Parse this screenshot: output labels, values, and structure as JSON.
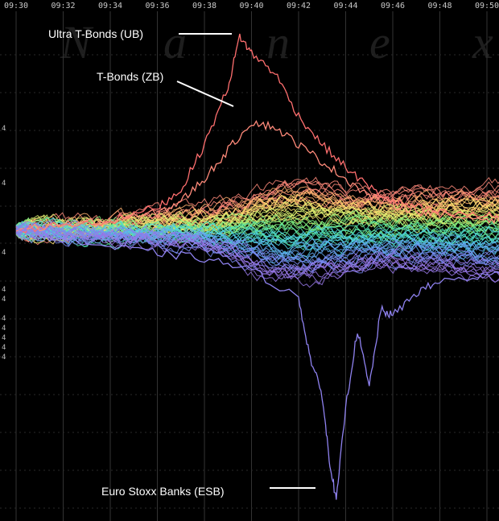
{
  "watermark": [
    "N",
    "a",
    "n",
    "e",
    "x"
  ],
  "colors": {
    "background": "#000000",
    "grid": "#333333",
    "tick_text": "#c8c8c8",
    "annotation": "#ffffff",
    "ub": "#ff6f6f",
    "zb": "#ff8a7a",
    "esb": "#8f82f0",
    "bundle": [
      "#ff8a7a",
      "#ffb070",
      "#ffe070",
      "#d8f070",
      "#80f080",
      "#50e0b0",
      "#50d0e8",
      "#60a8f0",
      "#7888f0",
      "#9878e8"
    ]
  },
  "chart_data": {
    "type": "line",
    "title": "",
    "xlabel": "",
    "ylabel": "",
    "x_ticks": [
      "09:30",
      "09:32",
      "09:34",
      "09:36",
      "09:38",
      "09:40",
      "09:42",
      "09:44",
      "09:46",
      "09:48",
      "09:50"
    ],
    "xlim": [
      "09:30",
      "09:51"
    ],
    "y_tick_labels": [
      "4",
      "4",
      "4",
      "4",
      "4",
      "4",
      "4",
      "4",
      "4",
      "4"
    ],
    "ylim": [
      -1.0,
      0.75
    ],
    "grid": true,
    "legend": "none",
    "annotations": [
      {
        "text": "Ultra T-Bonds (UB)",
        "series": "Ultra T-Bonds (UB)"
      },
      {
        "text": "T-Bonds (ZB)",
        "series": "T-Bonds (ZB)"
      },
      {
        "text": "Euro Stoxx Banks (ESB)",
        "series": "Euro Stoxx Banks (ESB)"
      }
    ],
    "series": [
      {
        "name": "Ultra T-Bonds (UB)",
        "color": "#ff6f6f",
        "x": [
          "09:30",
          "09:32",
          "09:34",
          "09:36",
          "09:37",
          "09:38",
          "09:39",
          "09:39.5",
          "09:40",
          "09:41",
          "09:42",
          "09:43",
          "09:44",
          "09:45",
          "09:46",
          "09:47",
          "09:48",
          "09:50",
          "09:51"
        ],
        "y": [
          0.0,
          0.02,
          0.03,
          0.08,
          0.14,
          0.3,
          0.5,
          0.68,
          0.62,
          0.55,
          0.4,
          0.3,
          0.22,
          0.15,
          0.1,
          0.08,
          0.06,
          0.05,
          0.05
        ]
      },
      {
        "name": "T-Bonds (ZB)",
        "color": "#ff8a7a",
        "x": [
          "09:30",
          "09:32",
          "09:34",
          "09:36",
          "09:37",
          "09:38",
          "09:39",
          "09:40",
          "09:41",
          "09:42",
          "09:43",
          "09:44",
          "09:45",
          "09:46",
          "09:47",
          "09:48",
          "09:50",
          "09:51"
        ],
        "y": [
          0.0,
          0.02,
          0.03,
          0.06,
          0.1,
          0.18,
          0.28,
          0.38,
          0.36,
          0.3,
          0.24,
          0.18,
          0.12,
          0.09,
          0.07,
          0.05,
          0.04,
          0.04
        ]
      },
      {
        "name": "Euro Stoxx Banks (ESB)",
        "color": "#8f82f0",
        "x": [
          "09:30",
          "09:32",
          "09:34",
          "09:36",
          "09:38",
          "09:40",
          "09:42",
          "09:42.5",
          "09:43",
          "09:43.3",
          "09:43.6",
          "09:44",
          "09:44.5",
          "09:45",
          "09:45.5",
          "09:46",
          "09:47",
          "09:48",
          "09:50",
          "09:51"
        ],
        "y": [
          0.0,
          -0.03,
          -0.06,
          -0.08,
          -0.1,
          -0.14,
          -0.24,
          -0.45,
          -0.58,
          -0.8,
          -0.95,
          -0.62,
          -0.35,
          -0.55,
          -0.28,
          -0.3,
          -0.22,
          -0.18,
          -0.16,
          -0.15
        ]
      }
    ]
  }
}
